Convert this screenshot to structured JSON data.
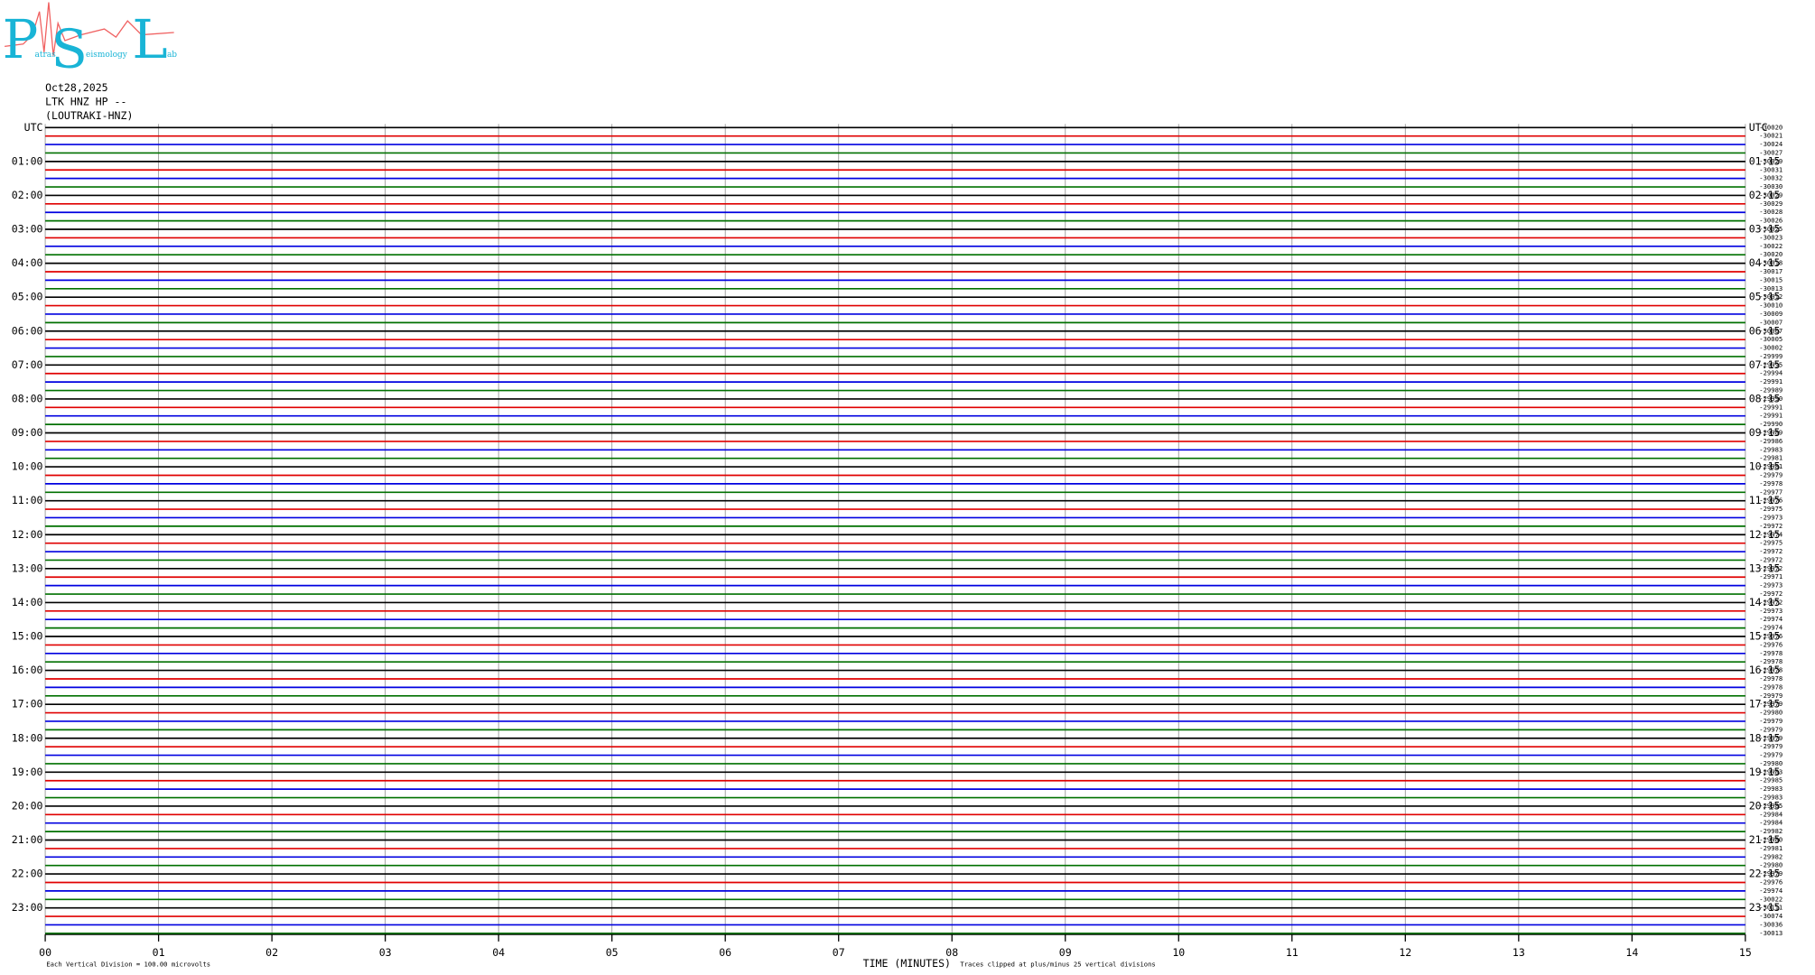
{
  "header": {
    "logo": {
      "letters": [
        "P",
        "S",
        "L"
      ],
      "words": [
        "atras",
        "eismology",
        "ab"
      ]
    },
    "date": "Oct28,2025",
    "station": "LTK HNZ HP --",
    "location": "(LOUTRAKI-HNZ)"
  },
  "axes": {
    "left_labels": [
      "UTC",
      "01:00",
      "02:00",
      "03:00",
      "04:00",
      "05:00",
      "06:00",
      "07:00",
      "08:00",
      "09:00",
      "10:00",
      "11:00",
      "12:00",
      "13:00",
      "14:00",
      "15:00",
      "16:00",
      "17:00",
      "18:00",
      "19:00",
      "20:00",
      "21:00",
      "22:00",
      "23:00"
    ],
    "right_labels": [
      "UTC",
      "01:15",
      "02:15",
      "03:15",
      "04:15",
      "05:15",
      "06:15",
      "07:15",
      "08:15",
      "09:15",
      "10:15",
      "11:15",
      "12:15",
      "13:15",
      "14:15",
      "15:15",
      "16:15",
      "17:15",
      "18:15",
      "19:15",
      "20:15",
      "21:15",
      "22:15",
      "23:15"
    ],
    "minute_labels": [
      "00",
      "01",
      "02",
      "03",
      "04",
      "05",
      "06",
      "07",
      "08",
      "09",
      "10",
      "11",
      "12",
      "13",
      "14",
      "15"
    ],
    "offsets": [
      -30020,
      -30021,
      -30024,
      -30027,
      -30029,
      -30031,
      -30032,
      -30030,
      -30029,
      -30029,
      -30028,
      -30026,
      -30025,
      -30023,
      -30022,
      -30020,
      -30018,
      -30017,
      -30015,
      -30013,
      -30012,
      -30010,
      -30009,
      -30007,
      -30007,
      -30005,
      -30002,
      -29999,
      -29995,
      -29994,
      -29991,
      -29989,
      -29990,
      -29991,
      -29991,
      -29990,
      -29989,
      -29986,
      -29983,
      -29981,
      -29981,
      -29979,
      -29978,
      -29977,
      -29976,
      -29975,
      -29973,
      -29972,
      -29974,
      -29975,
      -29972,
      -29972,
      -29972,
      -29971,
      -29973,
      -29972,
      -29972,
      -29973,
      -29974,
      -29974,
      -29976,
      -29976,
      -29978,
      -29978,
      -29978,
      -29978,
      -29978,
      -29979,
      -29979,
      -29980,
      -29979,
      -29979,
      -29979,
      -29979,
      -29979,
      -29980,
      -29983,
      -29985,
      -29983,
      -29983,
      -29985,
      -29984,
      -29984,
      -29982,
      -29980,
      -29981,
      -29982,
      -29980,
      -29979,
      -29976,
      -29974,
      -30022,
      -30111,
      -30074,
      -30036,
      -30013
    ]
  },
  "trace_colors": [
    "#000000",
    "#e00000",
    "#0000e0",
    "#007000"
  ],
  "footer": {
    "scale_note": "Each Vertical Division =  100.00 microvolts",
    "x_title": "TIME (MINUTES)",
    "clip_note": "Traces clipped at plus/minus 25 vertical divisions"
  }
}
